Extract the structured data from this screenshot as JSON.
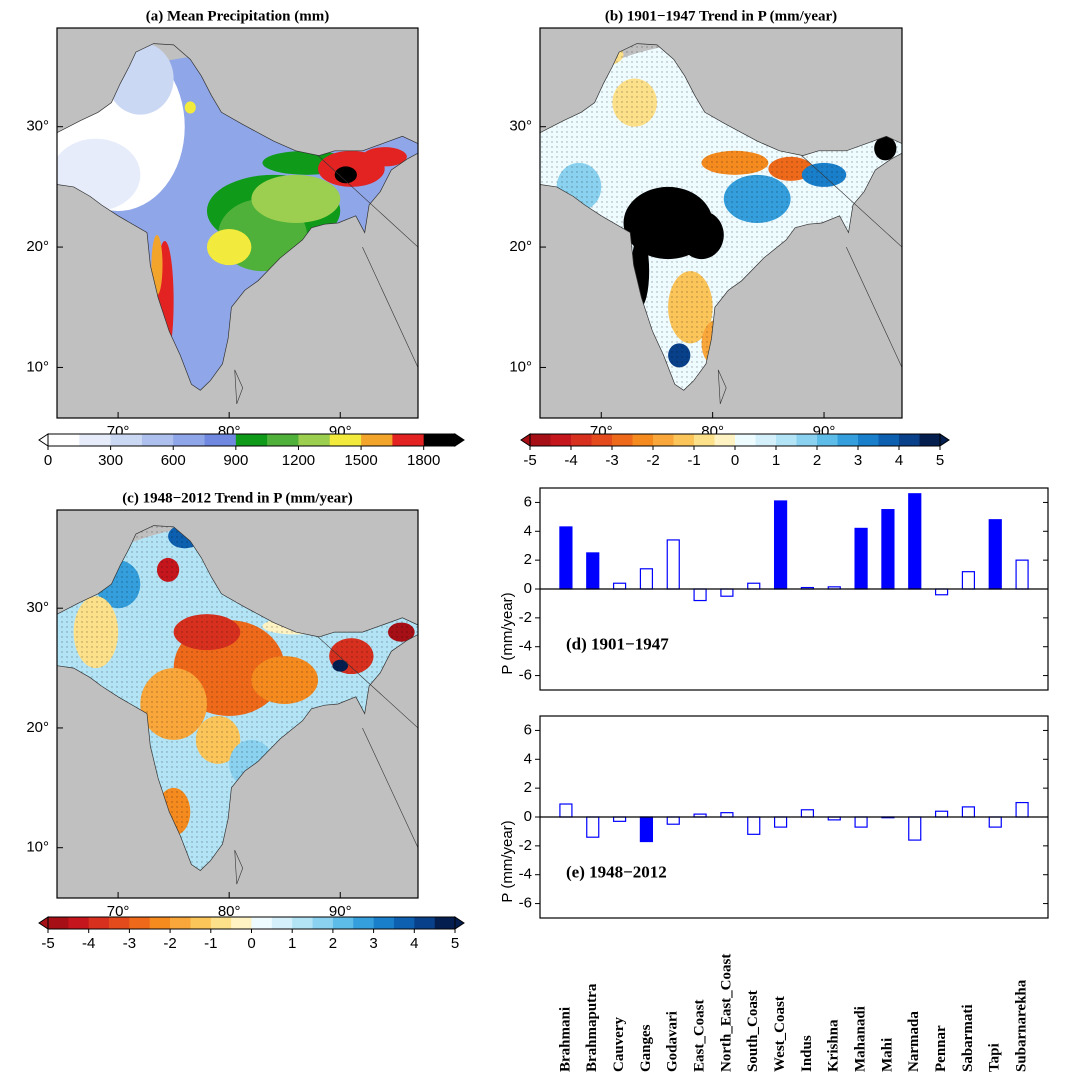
{
  "maps": [
    {
      "title": "(a) Mean Precipitation (mm)",
      "xlim": [
        64.5,
        97
      ],
      "ylim": [
        5.8,
        38.2
      ],
      "xticks": [
        {
          "value": 70,
          "label": "70°"
        },
        {
          "value": 80,
          "label": "80°"
        },
        {
          "value": 90,
          "label": "90°"
        }
      ],
      "yticks": [
        {
          "value": 10,
          "label": "10°"
        },
        {
          "value": 20,
          "label": "20°"
        },
        {
          "value": 30,
          "label": "30°"
        }
      ],
      "colorbar": {
        "lim": [
          0,
          1950
        ],
        "ticks": [
          0,
          300,
          600,
          900,
          1200,
          1500,
          1800
        ],
        "colors": [
          "#ffffff",
          "#e6ecfa",
          "#cbd8f4",
          "#adc0ee",
          "#8fa6e8",
          "#7088e0",
          "#0f9a1a",
          "#4fb13a",
          "#9ccf4f",
          "#f2ea3c",
          "#f3a52b",
          "#e32222",
          "#000000"
        ]
      }
    },
    {
      "title": "(b) 1901−1947 Trend in P (mm/year)",
      "xlim": [
        64.5,
        97
      ],
      "ylim": [
        5.8,
        38.2
      ],
      "xticks": [
        {
          "value": 70,
          "label": "70°"
        },
        {
          "value": 80,
          "label": "80°"
        },
        {
          "value": 90,
          "label": "90°"
        }
      ],
      "yticks": [
        {
          "value": 10,
          "label": "10°"
        },
        {
          "value": 20,
          "label": "20°"
        },
        {
          "value": 30,
          "label": "30°"
        }
      ],
      "colorbar": {
        "lim": [
          -5,
          5
        ],
        "ticks": [
          -5,
          -4,
          -3,
          -2,
          -1,
          0,
          1,
          2,
          3,
          4,
          5
        ],
        "colors": [
          "#a50f15",
          "#c4161c",
          "#d7301f",
          "#e34a1c",
          "#ee6a1a",
          "#f58a1f",
          "#f9a73a",
          "#fcc55a",
          "#fde08a",
          "#fff3c4",
          "#eefbff",
          "#d4f1fb",
          "#b3e4f6",
          "#8ad2f0",
          "#5ebde8",
          "#349fdc",
          "#1a7fcb",
          "#0d5fb0",
          "#08408a",
          "#041e4f"
        ]
      }
    },
    {
      "title": "(c) 1948−2012 Trend in P (mm/year)",
      "xlim": [
        64.5,
        97
      ],
      "ylim": [
        5.8,
        38.2
      ],
      "xticks": [
        {
          "value": 70,
          "label": "70°"
        },
        {
          "value": 80,
          "label": "80°"
        },
        {
          "value": 90,
          "label": "90°"
        }
      ],
      "yticks": [
        {
          "value": 10,
          "label": "10°"
        },
        {
          "value": 20,
          "label": "20°"
        },
        {
          "value": 30,
          "label": "30°"
        }
      ],
      "colorbar": {
        "lim": [
          -5,
          5
        ],
        "ticks": [
          -5,
          -4,
          -3,
          -2,
          -1,
          0,
          1,
          2,
          3,
          4,
          5
        ],
        "colors": [
          "#a50f15",
          "#c4161c",
          "#d7301f",
          "#e34a1c",
          "#ee6a1a",
          "#f58a1f",
          "#f9a73a",
          "#fcc55a",
          "#fde08a",
          "#fff3c4",
          "#eefbff",
          "#d4f1fb",
          "#b3e4f6",
          "#8ad2f0",
          "#5ebde8",
          "#349fdc",
          "#1a7fcb",
          "#0d5fb0",
          "#08408a",
          "#041e4f"
        ]
      }
    }
  ],
  "chart_data": [
    {
      "type": "bar",
      "annotation": "(d) 1901−1947",
      "y_label": "P (mm/year)",
      "values": [
        4.3,
        2.5,
        0.4,
        1.4,
        3.4,
        -0.8,
        -0.5,
        0.4,
        6.1,
        0.1,
        0.15,
        4.2,
        5.5,
        6.6,
        -0.4,
        1.2,
        4.8,
        2.0
      ],
      "filled": [
        true,
        true,
        false,
        false,
        false,
        false,
        false,
        false,
        true,
        false,
        false,
        true,
        true,
        true,
        false,
        false,
        true,
        false
      ],
      "color": "#0000ff",
      "ylim": [
        -7,
        7
      ],
      "yticks": [
        -6,
        -4,
        -2,
        0,
        2,
        4,
        6
      ]
    },
    {
      "type": "bar",
      "annotation": "(e) 1948−2012",
      "y_label": "P (mm/year)",
      "categories": [
        "Brahmani",
        "Brahmaputra",
        "Cauvery",
        "Ganges",
        "Godavari",
        "East_Coast",
        "North_East_Coast",
        "South_Coast",
        "West_Coast",
        "Indus",
        "Krishna",
        "Mahanadi",
        "Mahi",
        "Narmada",
        "Pennar",
        "Sabarmati",
        "Tapi",
        "Subarnarekha"
      ],
      "values": [
        0.9,
        -1.4,
        -0.3,
        -1.7,
        -0.5,
        0.2,
        0.3,
        -1.2,
        -0.7,
        0.5,
        -0.2,
        -0.7,
        -0.05,
        -1.6,
        0.4,
        0.7,
        -0.7,
        1.0
      ],
      "filled": [
        false,
        false,
        false,
        true,
        false,
        false,
        false,
        false,
        false,
        false,
        false,
        false,
        false,
        false,
        false,
        false,
        false,
        false
      ],
      "color": "#0000ff",
      "ylim": [
        -7,
        7
      ],
      "yticks": [
        -6,
        -4,
        -2,
        0,
        2,
        4,
        6
      ]
    }
  ]
}
